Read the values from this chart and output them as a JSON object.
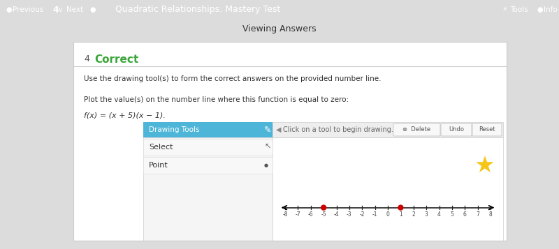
{
  "top_bar_color": "#45b0d8",
  "top_bar_text": "Quadratic Relationships: Mastery Test",
  "yellow_bar_color": "#f0c419",
  "yellow_bar_text": "Viewing Answers",
  "bg_color": "#dcdcdc",
  "panel_bg": "#ffffff",
  "panel_border": "#cccccc",
  "question_number": "4",
  "correct_text": "Correct",
  "correct_color": "#3aa63a",
  "instruction1": "Use the drawing tool(s) to form the correct answers on the provided number line.",
  "instruction2": "Plot the value(s) on the number line where this function is equal to zero:",
  "function_text": "f(x) = (x + 5)(x − 1).",
  "drawing_tools_bg": "#4db5d8",
  "drawing_tools_text": "Drawing Tools",
  "toolbar_bg": "#eeeeee",
  "toolbar_text": "Click on a tool to begin drawing.",
  "select_text": "Select",
  "point_text": "Point",
  "tools_body_bg": "#f5f5f5",
  "tools_body_border": "#cccccc",
  "select_bg": "#f0f0f0",
  "point_bg": "#f0f0f0",
  "delete_text": "⊗  Delete",
  "undo_text": "Undo",
  "reset_text": "Reset",
  "btn_bg": "#f8f8f8",
  "btn_border": "#bbbbbb",
  "number_line_min": -8,
  "number_line_max": 8,
  "tick_marks": [
    -8,
    -7,
    -6,
    -5,
    -4,
    -3,
    -2,
    -1,
    0,
    1,
    2,
    3,
    4,
    5,
    6,
    7,
    8
  ],
  "zero_points": [
    -5,
    1
  ],
  "point_color": "#cc0000",
  "star_color": "#f5c518",
  "nl_line_color": "#222222",
  "tick_label_color": "#444444"
}
